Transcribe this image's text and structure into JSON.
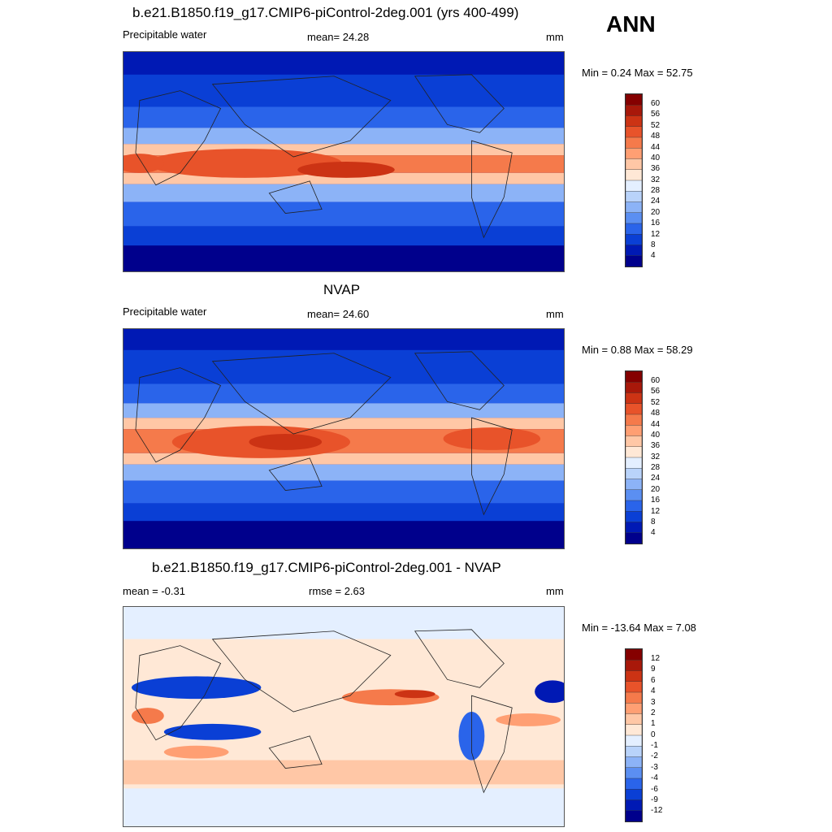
{
  "header": {
    "season": "ANN"
  },
  "panels": [
    {
      "title": "b.e21.B1850.f19_g17.CMIP6-piControl-2deg.001 (yrs 400-499)",
      "left_label": "Precipitable water",
      "center_label": "mean=  24.28",
      "units": "mm",
      "minmax": "Min =   0.24 Max =  52.75",
      "colorbar_labels": [
        "60",
        "56",
        "52",
        "48",
        "44",
        "40",
        "36",
        "32",
        "28",
        "24",
        "20",
        "16",
        "12",
        "8",
        "4"
      ]
    },
    {
      "title": "NVAP",
      "left_label": "Precipitable water",
      "center_label": "mean=  24.60",
      "units": "mm",
      "minmax": "Min =   0.88 Max =  58.29",
      "colorbar_labels": [
        "60",
        "56",
        "52",
        "48",
        "44",
        "40",
        "36",
        "32",
        "28",
        "24",
        "20",
        "16",
        "12",
        "8",
        "4"
      ]
    },
    {
      "title": "b.e21.B1850.f19_g17.CMIP6-piControl-2deg.001 - NVAP",
      "left_label": "mean =  -0.31",
      "center_label": "rmse =   2.63",
      "units": "mm",
      "minmax": "Min = -13.64 Max =   7.08",
      "colorbar_labels": [
        "12",
        "9",
        "6",
        "4",
        "3",
        "2",
        "1",
        "0",
        "-1",
        "-2",
        "-3",
        "-4",
        "-6",
        "-9",
        "-12"
      ]
    }
  ],
  "chart_data": [
    {
      "type": "heatmap",
      "title": "b.e21.B1850.f19_g17.CMIP6-piControl-2deg.001 (yrs 400-499)",
      "variable": "Precipitable water",
      "units": "mm",
      "mean": 24.28,
      "min": 0.24,
      "max": 52.75,
      "levels": [
        4,
        8,
        12,
        16,
        20,
        24,
        28,
        32,
        36,
        40,
        44,
        48,
        52,
        56,
        60
      ],
      "colors": [
        "#00008c",
        "#0019b4",
        "#0a3fd5",
        "#2a64ea",
        "#5b8ff2",
        "#8cb3f7",
        "#b9d3fa",
        "#e4efff",
        "#ffe8d6",
        "#ffc7a6",
        "#ff9f73",
        "#f57a4b",
        "#e8532a",
        "#cc3314",
        "#a8180a",
        "#850000"
      ]
    },
    {
      "type": "heatmap",
      "title": "NVAP",
      "variable": "Precipitable water",
      "units": "mm",
      "mean": 24.6,
      "min": 0.88,
      "max": 58.29,
      "levels": [
        4,
        8,
        12,
        16,
        20,
        24,
        28,
        32,
        36,
        40,
        44,
        48,
        52,
        56,
        60
      ],
      "colors": [
        "#00008c",
        "#0019b4",
        "#0a3fd5",
        "#2a64ea",
        "#5b8ff2",
        "#8cb3f7",
        "#b9d3fa",
        "#e4efff",
        "#ffe8d6",
        "#ffc7a6",
        "#ff9f73",
        "#f57a4b",
        "#e8532a",
        "#cc3314",
        "#a8180a",
        "#850000"
      ]
    },
    {
      "type": "heatmap",
      "title": "b.e21.B1850.f19_g17.CMIP6-piControl-2deg.001 - NVAP",
      "units": "mm",
      "mean": -0.31,
      "rmse": 2.63,
      "min": -13.64,
      "max": 7.08,
      "levels": [
        -12,
        -9,
        -6,
        -4,
        -3,
        -2,
        -1,
        0,
        1,
        2,
        3,
        4,
        6,
        9,
        12
      ],
      "colors": [
        "#00008c",
        "#0019b4",
        "#0a3fd5",
        "#2a64ea",
        "#5b8ff2",
        "#8cb3f7",
        "#b9d3fa",
        "#e4efff",
        "#ffe8d6",
        "#ffc7a6",
        "#ff9f73",
        "#f57a4b",
        "#e8532a",
        "#cc3314",
        "#a8180a",
        "#850000"
      ]
    }
  ]
}
